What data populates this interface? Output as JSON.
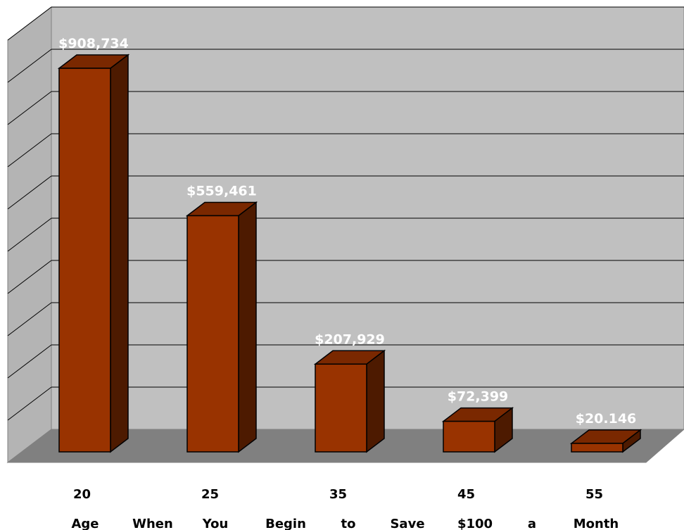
{
  "chart_data": {
    "type": "bar",
    "title": "",
    "categories": [
      "20",
      "25",
      "35",
      "45",
      "55"
    ],
    "values": [
      908734,
      559461,
      207929,
      72399,
      20146
    ],
    "data_labels": [
      "$908,734",
      "$559,461",
      "$207,929",
      "$72,399",
      "$20.146"
    ],
    "xlabel": "Age When You Begin to Save $100 a Month",
    "xlabel_words": [
      "Age",
      "When",
      "You",
      "Begin",
      "to",
      "Save",
      "$100",
      "a",
      "Month"
    ],
    "ylabel": "",
    "ylim": [
      0,
      1000000
    ],
    "grid": true,
    "legend": "none",
    "three_d": true,
    "colors": {
      "bar_front": "#993300",
      "bar_top": "#7a2800",
      "bar_side": "#4d1a00",
      "back_wall": "#c0c0c0",
      "side_wall": "#b4b4b4",
      "floor": "#808080",
      "data_label": "#ffffff"
    }
  }
}
